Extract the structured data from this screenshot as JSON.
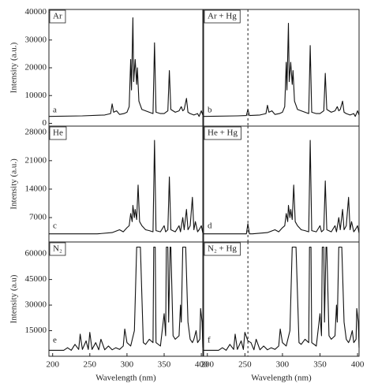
{
  "chart_data": [
    {
      "type": "line",
      "label": "Ar",
      "letter": "a",
      "color": "#111111",
      "ylabel": "Intensity (a.u.)",
      "xlim": [
        195,
        402
      ],
      "ylim": [
        -1000,
        41000
      ],
      "yticks": [
        0,
        10000,
        20000,
        30000,
        40000
      ],
      "x": [
        195,
        240,
        270,
        278,
        280,
        282,
        286,
        290,
        296,
        300,
        303,
        305,
        306,
        308,
        309,
        311,
        313,
        314,
        316,
        320,
        325,
        330,
        335,
        337,
        339,
        345,
        350,
        355,
        357,
        359,
        365,
        370,
        373,
        375,
        377,
        380,
        382,
        385,
        390,
        395,
        397,
        400,
        402
      ],
      "values": [
        2500,
        2700,
        3000,
        3500,
        7000,
        4000,
        4500,
        3200,
        3500,
        4000,
        6000,
        23000,
        12000,
        38000,
        15000,
        23000,
        14000,
        20000,
        8000,
        5000,
        4500,
        4000,
        3500,
        29000,
        4000,
        3500,
        3500,
        4500,
        19000,
        5000,
        4000,
        4500,
        6000,
        4500,
        5000,
        9000,
        4000,
        3500,
        3000,
        3500,
        2500,
        4500,
        3000
      ]
    },
    {
      "type": "line",
      "label": "Ar + Hg",
      "letter": "b",
      "color": "#111111",
      "vline": 254,
      "xlim": [
        195,
        402
      ],
      "ylim": [
        -1000,
        41000
      ],
      "x": [
        195,
        240,
        252,
        254,
        256,
        270,
        278,
        280,
        282,
        286,
        290,
        296,
        300,
        303,
        305,
        306,
        308,
        309,
        311,
        313,
        314,
        316,
        320,
        325,
        330,
        335,
        337,
        339,
        345,
        350,
        355,
        357,
        359,
        365,
        370,
        373,
        375,
        377,
        380,
        382,
        385,
        390,
        395,
        397,
        400,
        402
      ],
      "values": [
        2500,
        2700,
        2800,
        5000,
        2800,
        3000,
        3500,
        6500,
        4000,
        4500,
        3200,
        3500,
        4000,
        6000,
        22000,
        12000,
        36000,
        15000,
        22000,
        14000,
        19000,
        8000,
        5000,
        4500,
        4000,
        3500,
        28000,
        4000,
        3500,
        3500,
        4500,
        18000,
        5000,
        4000,
        4500,
        6000,
        4500,
        5000,
        8000,
        4000,
        3500,
        3000,
        3500,
        2500,
        4500,
        3000
      ]
    },
    {
      "type": "line",
      "label": "He",
      "letter": "c",
      "color": "#111111",
      "ylabel": "Intensity (a.u.)",
      "xlim": [
        195,
        402
      ],
      "ylim": [
        1000,
        29500
      ],
      "yticks": [
        7000,
        14000,
        21000,
        28000
      ],
      "x": [
        195,
        260,
        280,
        290,
        295,
        300,
        303,
        305,
        307,
        308,
        310,
        311,
        313,
        315,
        317,
        320,
        325,
        330,
        335,
        337,
        339,
        345,
        350,
        352,
        355,
        357,
        359,
        365,
        370,
        372,
        375,
        377,
        380,
        382,
        385,
        388,
        390,
        392,
        395,
        397,
        400,
        402
      ],
      "values": [
        3000,
        3000,
        3300,
        4000,
        3500,
        4500,
        5000,
        8000,
        6000,
        10000,
        7000,
        9000,
        6500,
        15000,
        6000,
        5000,
        4000,
        3800,
        3500,
        26000,
        3800,
        3500,
        5000,
        3500,
        4000,
        17000,
        4000,
        3500,
        5000,
        3500,
        7000,
        4000,
        9000,
        4000,
        5000,
        12000,
        4000,
        6000,
        3500,
        4000,
        5000,
        3200
      ]
    },
    {
      "type": "line",
      "label": "He + Hg",
      "letter": "d",
      "color": "#111111",
      "vline": 254,
      "xlim": [
        195,
        402
      ],
      "ylim": [
        1000,
        29500
      ],
      "x": [
        195,
        252,
        254,
        256,
        260,
        280,
        290,
        295,
        300,
        303,
        305,
        307,
        308,
        310,
        311,
        313,
        315,
        317,
        320,
        325,
        330,
        335,
        337,
        339,
        345,
        350,
        352,
        355,
        357,
        359,
        365,
        370,
        372,
        375,
        377,
        380,
        382,
        385,
        388,
        390,
        392,
        395,
        397,
        400,
        402
      ],
      "values": [
        3000,
        3000,
        5500,
        3000,
        3000,
        3300,
        4000,
        3500,
        4500,
        5000,
        8000,
        6000,
        10000,
        7000,
        9000,
        6500,
        15000,
        6000,
        5000,
        4000,
        3800,
        3500,
        26000,
        3800,
        3500,
        5000,
        3500,
        4000,
        16000,
        4000,
        3500,
        5000,
        3500,
        7000,
        4000,
        9000,
        4000,
        5000,
        12000,
        4000,
        6000,
        3500,
        4000,
        5000,
        3200
      ]
    },
    {
      "type": "line",
      "label": "N₂",
      "letter": "e",
      "color": "#111111",
      "ylabel": "Intensity (a.u)",
      "xlabel": "Wavelength (nm)",
      "xlim": [
        195,
        402
      ],
      "ylim": [
        0,
        67000
      ],
      "yticks": [
        15000,
        30000,
        45000,
        60000
      ],
      "xticks": [
        200,
        250,
        300,
        350,
        400
      ],
      "x": [
        195,
        215,
        220,
        225,
        230,
        235,
        237,
        240,
        245,
        248,
        250,
        253,
        258,
        262,
        265,
        270,
        275,
        280,
        285,
        290,
        295,
        297,
        300,
        305,
        310,
        313,
        314,
        317,
        318,
        322,
        325,
        330,
        335,
        336,
        338,
        339,
        345,
        350,
        352,
        353,
        355,
        356,
        358,
        359,
        362,
        365,
        370,
        372,
        373,
        375,
        376,
        378,
        379,
        382,
        385,
        388,
        390,
        393,
        395,
        398,
        399,
        401,
        402
      ],
      "values": [
        3500,
        3500,
        5000,
        3500,
        7000,
        4000,
        13000,
        4000,
        9000,
        4000,
        14000,
        4000,
        8000,
        3800,
        10000,
        3800,
        6000,
        3800,
        5000,
        4000,
        6000,
        16000,
        8000,
        6000,
        15000,
        64000,
        64000,
        64000,
        64000,
        8000,
        7000,
        10000,
        8000,
        64000,
        64000,
        8000,
        6000,
        25000,
        12000,
        64000,
        64000,
        20000,
        64000,
        64000,
        12000,
        10000,
        12000,
        30000,
        20000,
        64000,
        64000,
        64000,
        64000,
        20000,
        10000,
        8000,
        10000,
        15000,
        8000,
        10000,
        28000,
        20000,
        5000
      ]
    },
    {
      "type": "line",
      "label": "N₂ + Hg",
      "letter": "f",
      "color": "#111111",
      "vline": 254,
      "xlabel": "Wavelength (nm)",
      "xlim": [
        195,
        402
      ],
      "ylim": [
        0,
        67000
      ],
      "xticks": [
        200,
        250,
        300,
        350,
        400
      ],
      "x": [
        195,
        215,
        220,
        225,
        230,
        235,
        237,
        240,
        245,
        248,
        250,
        254,
        258,
        262,
        265,
        270,
        275,
        280,
        285,
        290,
        295,
        297,
        300,
        305,
        310,
        313,
        314,
        317,
        318,
        322,
        325,
        330,
        335,
        336,
        338,
        339,
        345,
        350,
        352,
        353,
        355,
        356,
        358,
        359,
        362,
        365,
        370,
        372,
        373,
        375,
        376,
        378,
        379,
        382,
        385,
        388,
        390,
        393,
        395,
        398,
        399,
        401,
        402
      ],
      "values": [
        3500,
        3500,
        5000,
        3500,
        7000,
        4000,
        13000,
        4000,
        9000,
        4000,
        14000,
        9000,
        8000,
        3800,
        10000,
        3800,
        6000,
        3800,
        5000,
        4000,
        6000,
        16000,
        8000,
        6000,
        15000,
        64000,
        64000,
        64000,
        64000,
        8000,
        7000,
        10000,
        8000,
        64000,
        64000,
        8000,
        6000,
        25000,
        12000,
        64000,
        64000,
        20000,
        64000,
        64000,
        12000,
        10000,
        12000,
        30000,
        20000,
        64000,
        64000,
        64000,
        64000,
        20000,
        10000,
        8000,
        10000,
        15000,
        8000,
        10000,
        28000,
        20000,
        5000
      ]
    }
  ]
}
